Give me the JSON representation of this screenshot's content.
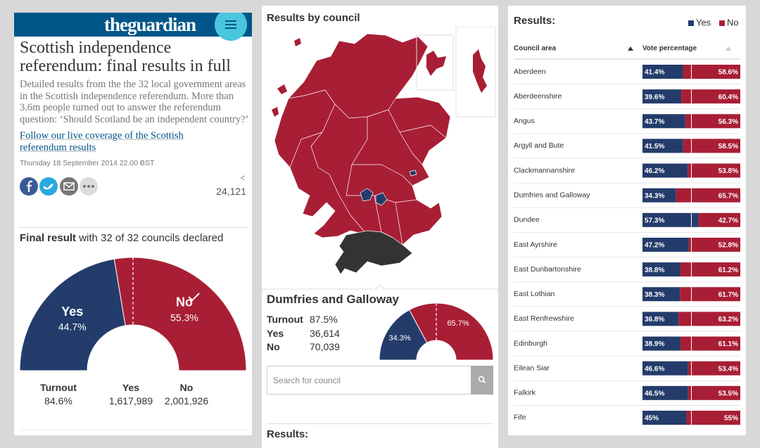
{
  "header": {
    "logo": "theguardian"
  },
  "article": {
    "title": "Scottish independence referendum: final results in full",
    "standfirst": "Detailed results from the the 32 local government areas in the Scottish independence referendum. More than 3.6m people turned out to answer the referendum question: ‘Should Scotland be an independent country?’",
    "link": "Follow our live coverage of the Scottish referendum results",
    "date": "Thursday 18 September 2014 22.00 BST",
    "shares": "24,121"
  },
  "final_result": {
    "heading_bold": "Final result",
    "heading_rest": "with 32 of 32 councils declared",
    "chart": {
      "type": "half-donut",
      "categories": [
        "Yes",
        "No"
      ],
      "values": [
        44.7,
        55.3
      ],
      "value_labels": [
        "44.7%",
        "55.3%"
      ],
      "colors": [
        "#233c6b",
        "#a81e35"
      ]
    },
    "stats": {
      "labels": [
        "Turnout",
        "Yes",
        "No"
      ],
      "values": [
        "84.6%",
        "1,617,989",
        "2,001,926"
      ]
    }
  },
  "council": {
    "heading": "Results by council",
    "name": "Dumfries and Galloway",
    "stats": {
      "labels": [
        "Turnout",
        "Yes",
        "No"
      ],
      "values": [
        "87.5%",
        "36,614",
        "70,039"
      ]
    },
    "chart": {
      "type": "half-donut",
      "categories": [
        "Yes",
        "No"
      ],
      "values": [
        34.3,
        65.7
      ],
      "value_labels": [
        "34.3%",
        "65.7%"
      ],
      "colors": [
        "#233c6b",
        "#a81e35"
      ]
    },
    "search_placeholder": "Search for council"
  },
  "table": {
    "title": "Results:",
    "legend": [
      {
        "name": "Yes",
        "color": "#233c6b"
      },
      {
        "name": "No",
        "color": "#a81e35"
      }
    ],
    "columns": [
      "Council area",
      "Vote percentage"
    ],
    "rows": [
      {
        "council": "Aberdeen",
        "yes": 41.4,
        "no": 58.6,
        "yes_label": "41.4%",
        "no_label": "58.6%"
      },
      {
        "council": "Aberdeenshire",
        "yes": 39.6,
        "no": 60.4,
        "yes_label": "39.6%",
        "no_label": "60.4%"
      },
      {
        "council": "Angus",
        "yes": 43.7,
        "no": 56.3,
        "yes_label": "43.7%",
        "no_label": "56.3%"
      },
      {
        "council": "Argyll and Bute",
        "yes": 41.5,
        "no": 58.5,
        "yes_label": "41.5%",
        "no_label": "58.5%"
      },
      {
        "council": "Clackmannanshire",
        "yes": 46.2,
        "no": 53.8,
        "yes_label": "46.2%",
        "no_label": "53.8%"
      },
      {
        "council": "Dumfries and Galloway",
        "yes": 34.3,
        "no": 65.7,
        "yes_label": "34.3%",
        "no_label": "65.7%"
      },
      {
        "council": "Dundee",
        "yes": 57.3,
        "no": 42.7,
        "yes_label": "57.3%",
        "no_label": "42.7%"
      },
      {
        "council": "East Ayrshire",
        "yes": 47.2,
        "no": 52.8,
        "yes_label": "47.2%",
        "no_label": "52.8%"
      },
      {
        "council": "East Dunbartonshire",
        "yes": 38.8,
        "no": 61.2,
        "yes_label": "38.8%",
        "no_label": "61.2%"
      },
      {
        "council": "East Lothian",
        "yes": 38.3,
        "no": 61.7,
        "yes_label": "38.3%",
        "no_label": "61.7%"
      },
      {
        "council": "East Renfrewshire",
        "yes": 36.8,
        "no": 63.2,
        "yes_label": "36.8%",
        "no_label": "63.2%"
      },
      {
        "council": "Edinburgh",
        "yes": 38.9,
        "no": 61.1,
        "yes_label": "38.9%",
        "no_label": "61.1%"
      },
      {
        "council": "Eilean Siar",
        "yes": 46.6,
        "no": 53.4,
        "yes_label": "46.6%",
        "no_label": "53.4%"
      },
      {
        "council": "Falkirk",
        "yes": 46.5,
        "no": 53.5,
        "yes_label": "46.5%",
        "no_label": "53.5%"
      },
      {
        "council": "Fife",
        "yes": 45,
        "no": 55,
        "yes_label": "45%",
        "no_label": "55%"
      }
    ]
  }
}
